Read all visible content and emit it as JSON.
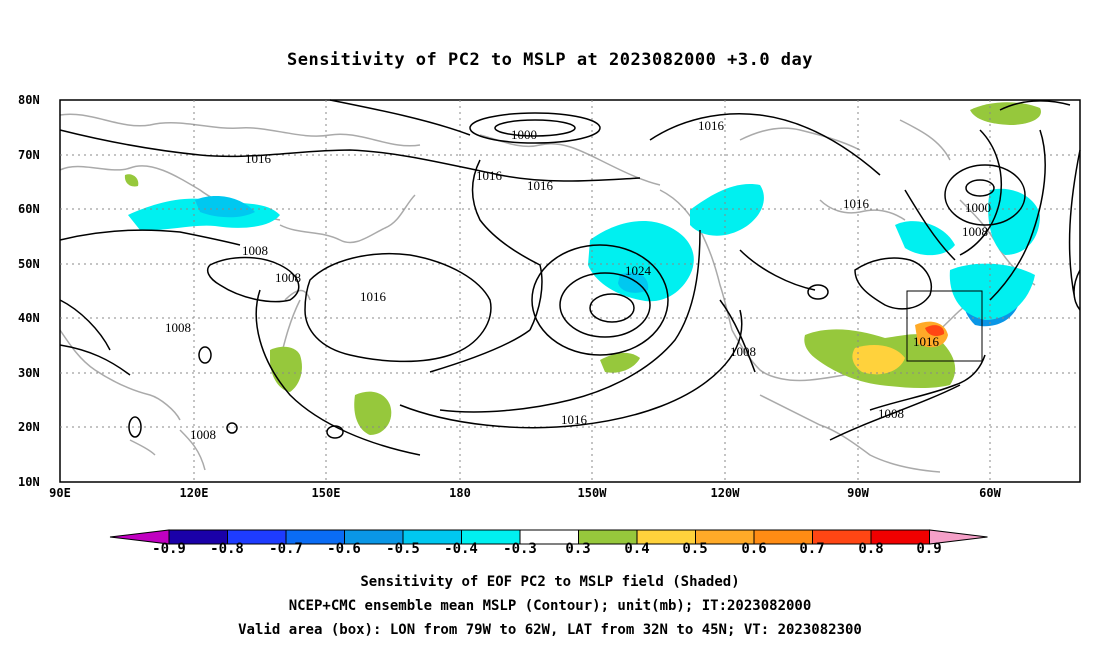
{
  "title": "Sensitivity of PC2 to MSLP at 2023082000 +3.0 day",
  "lat_labels": [
    "80N",
    "70N",
    "60N",
    "50N",
    "40N",
    "30N",
    "20N",
    "10N"
  ],
  "lon_labels": [
    "90E",
    "120E",
    "150E",
    "180",
    "150W",
    "120W",
    "90W",
    "60W"
  ],
  "contour_labels": [
    "1016",
    "1000",
    "1016",
    "1016",
    "1016",
    "1016",
    "1008",
    "1008",
    "1016",
    "1024",
    "1008",
    "1008",
    "1016",
    "1000",
    "1008",
    "1016",
    "1008"
  ],
  "colorbar": {
    "labels": [
      "-0.9",
      "-0.8",
      "-0.7",
      "-0.6",
      "-0.5",
      "-0.4",
      "-0.3",
      "0.3",
      "0.4",
      "0.5",
      "0.6",
      "0.7",
      "0.8",
      "0.9"
    ],
    "colors": [
      "#c000c0",
      "#1a00a8",
      "#1e3cff",
      "#0a6cf5",
      "#0a96e6",
      "#00c8f0",
      "#00f0f0",
      "#ffffff",
      "#96c83c",
      "#ffd23c",
      "#ffaa28",
      "#ff8c14",
      "#ff4614",
      "#f00000",
      "#f5a0c8"
    ]
  },
  "captions": [
    "Sensitivity of EOF PC2 to MSLP field (Shaded)",
    "NCEP+CMC ensemble mean MSLP (Contour); unit(mb); IT:2023082000",
    "Valid area (box): LON from 79W to 62W, LAT from 32N to 45N; VT: 2023082300"
  ]
}
